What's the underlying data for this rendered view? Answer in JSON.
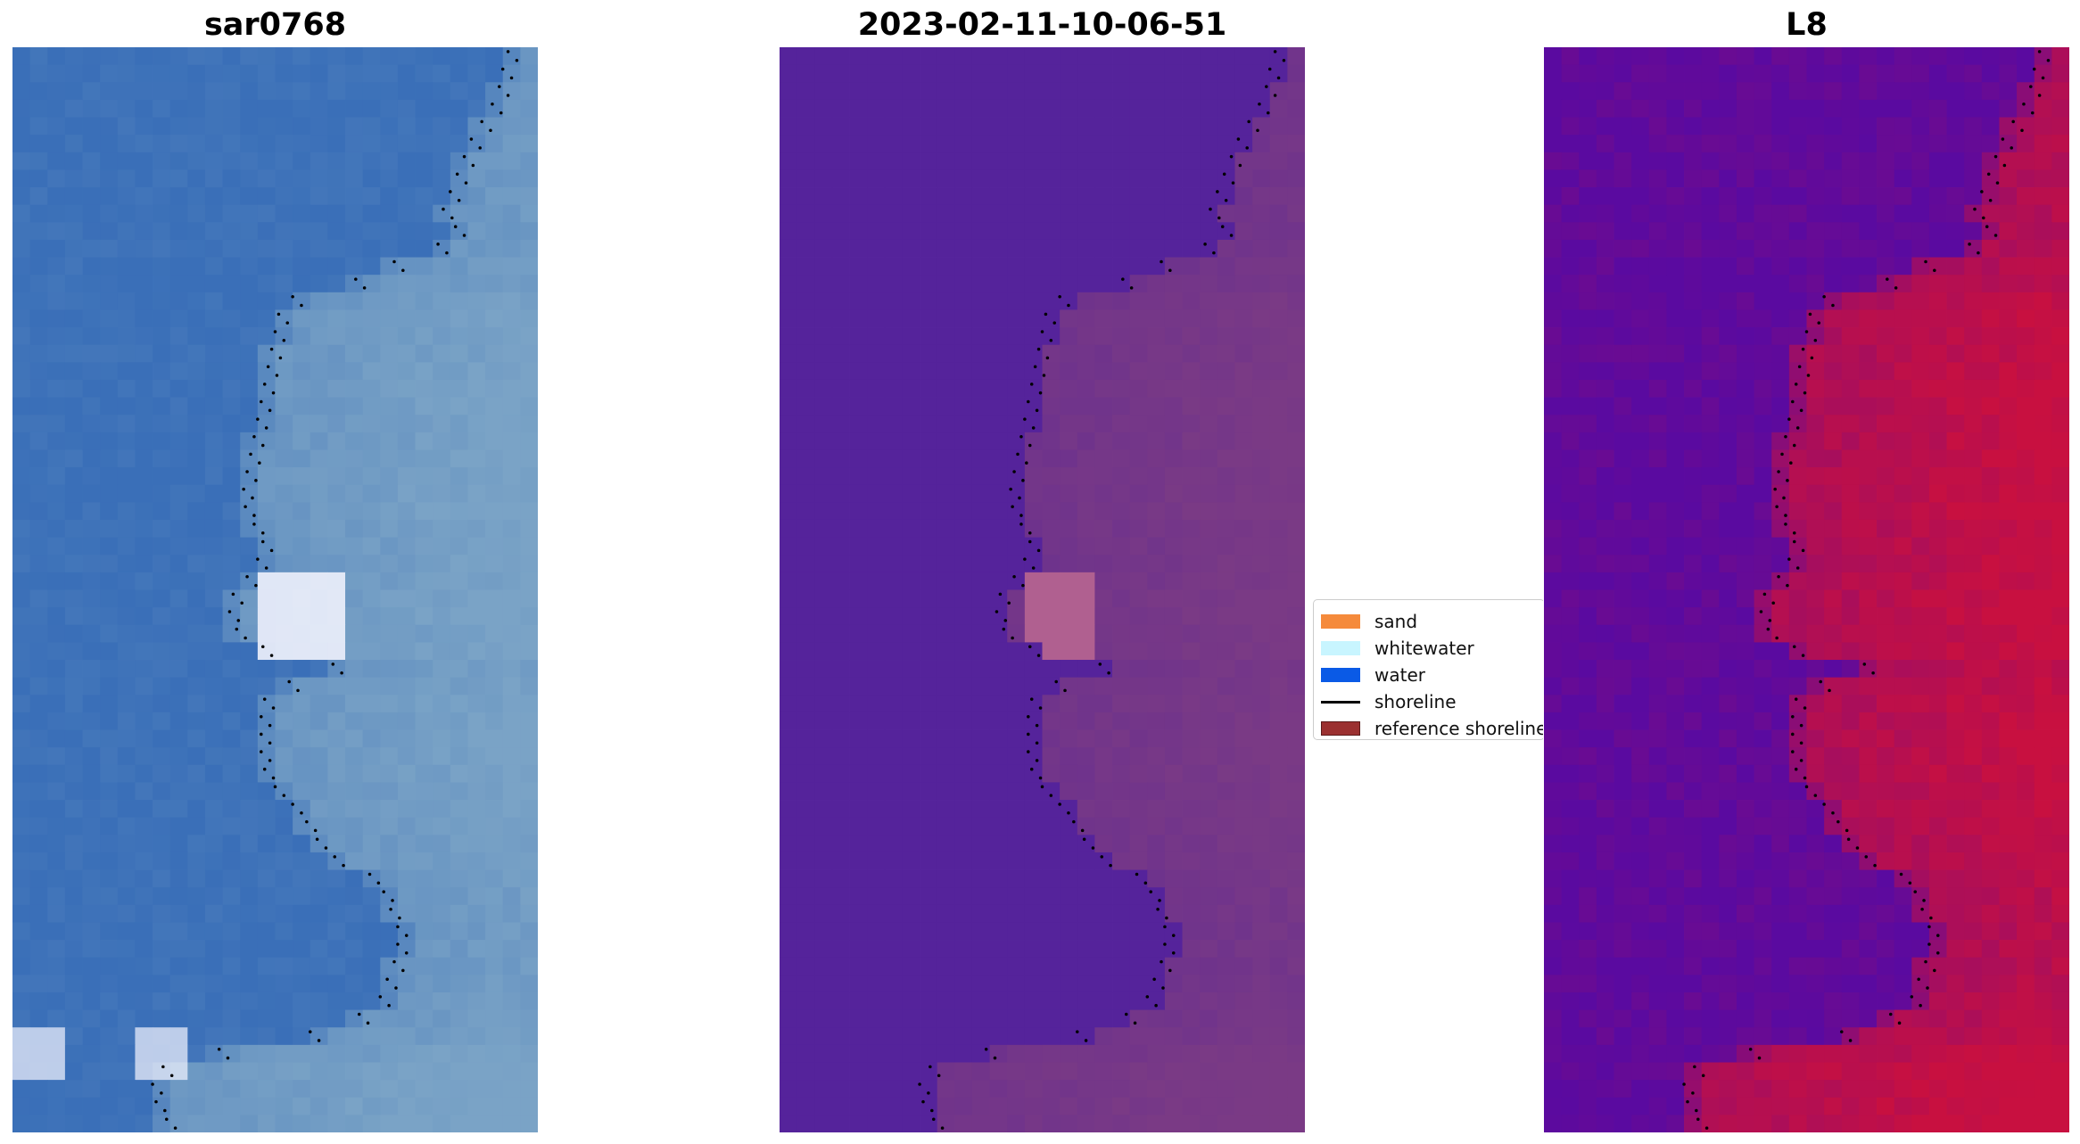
{
  "panels": [
    {
      "title": "sar0768",
      "kind": "rgb"
    },
    {
      "title": "2023-02-11-10-06-51",
      "kind": "classified"
    },
    {
      "title": "L8",
      "kind": "index"
    }
  ],
  "legend": {
    "items": [
      {
        "label": "sand",
        "color": "#f58a3b",
        "type": "patch"
      },
      {
        "label": "whitewater",
        "color": "#c8f5ff",
        "type": "patch"
      },
      {
        "label": "water",
        "color": "#0a5ae6",
        "type": "patch"
      },
      {
        "label": "shoreline",
        "color": "#000000",
        "type": "line"
      },
      {
        "label": "reference shoreline",
        "color": "#9b3030",
        "type": "patch"
      }
    ]
  },
  "colors": {
    "rgb_water": "#3a6fb8",
    "rgb_land": "#7aa3c6",
    "rgb_white": "#f5f5ff",
    "class_water": "#55239b",
    "class_land": "#7a3a85",
    "class_pink": "#b06090",
    "index_low": "#5a0aa0",
    "index_high": "#c81040",
    "shoreline": "#000000"
  }
}
